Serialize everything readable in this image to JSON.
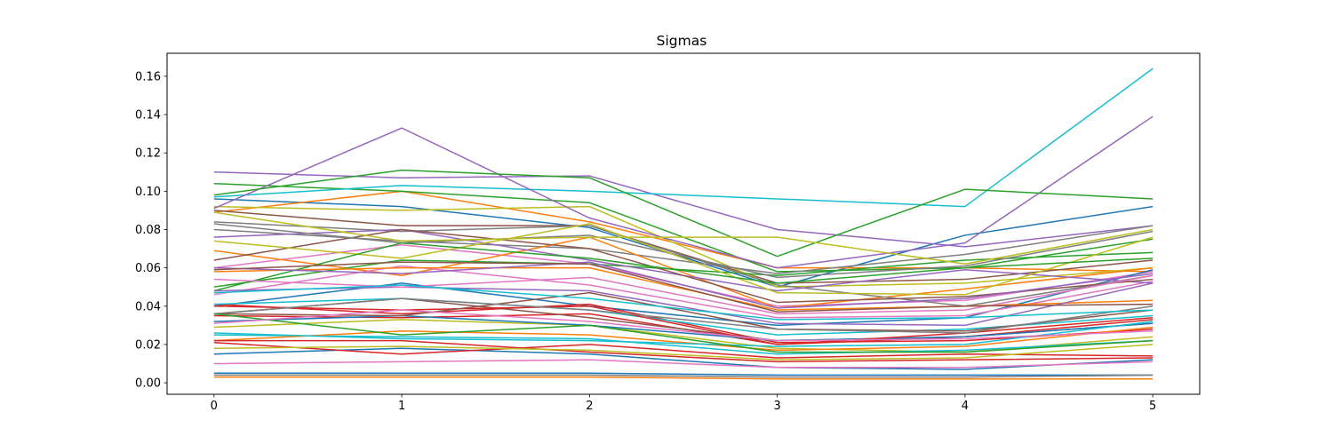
{
  "chart_data": {
    "type": "line",
    "title": "Sigmas",
    "xlabel": "",
    "ylabel": "",
    "x": [
      0,
      1,
      2,
      3,
      4,
      5
    ],
    "xlim": [
      -0.25,
      5.25
    ],
    "ylim": [
      -0.006,
      0.172
    ],
    "x_ticks": [
      "0",
      "1",
      "2",
      "3",
      "4",
      "5"
    ],
    "y_ticks": [
      "0.00",
      "0.02",
      "0.04",
      "0.06",
      "0.08",
      "0.10",
      "0.12",
      "0.14",
      "0.16"
    ],
    "y_tick_values": [
      0.0,
      0.02,
      0.04,
      0.06,
      0.08,
      0.1,
      0.12,
      0.14,
      0.16
    ],
    "grid": false,
    "legend": "none",
    "series": [
      {
        "color": "#1f77b4",
        "values": [
          0.096,
          0.092,
          0.081,
          0.05,
          0.077,
          0.092
        ]
      },
      {
        "color": "#ff7f0e",
        "values": [
          0.089,
          0.1,
          0.084,
          0.06,
          0.06,
          0.058
        ]
      },
      {
        "color": "#2ca02c",
        "values": [
          0.104,
          0.1,
          0.094,
          0.058,
          0.06,
          0.075
        ]
      },
      {
        "color": "#d62728",
        "values": [
          0.035,
          0.034,
          0.036,
          0.02,
          0.024,
          0.033
        ]
      },
      {
        "color": "#9467bd",
        "values": [
          0.11,
          0.107,
          0.108,
          0.08,
          0.071,
          0.082
        ]
      },
      {
        "color": "#8c564b",
        "values": [
          0.09,
          0.082,
          0.082,
          0.052,
          0.054,
          0.064
        ]
      },
      {
        "color": "#e377c2",
        "values": [
          0.06,
          0.072,
          0.062,
          0.04,
          0.043,
          0.058
        ]
      },
      {
        "color": "#7f7f7f",
        "values": [
          0.08,
          0.074,
          0.07,
          0.057,
          0.067,
          0.082
        ]
      },
      {
        "color": "#bcbd22",
        "values": [
          0.092,
          0.09,
          0.092,
          0.05,
          0.052,
          0.06
        ]
      },
      {
        "color": "#17becf",
        "values": [
          0.097,
          0.103,
          0.1,
          0.096,
          0.092,
          0.164
        ]
      },
      {
        "color": "#1f77b4",
        "values": [
          0.04,
          0.052,
          0.04,
          0.03,
          0.034,
          0.059
        ]
      },
      {
        "color": "#ff7f0e",
        "values": [
          0.069,
          0.056,
          0.076,
          0.039,
          0.049,
          0.06
        ]
      },
      {
        "color": "#2ca02c",
        "values": [
          0.05,
          0.064,
          0.062,
          0.056,
          0.064,
          0.068
        ]
      },
      {
        "color": "#d62728",
        "values": [
          0.041,
          0.036,
          0.041,
          0.021,
          0.022,
          0.028
        ]
      },
      {
        "color": "#9467bd",
        "values": [
          0.091,
          0.133,
          0.086,
          0.06,
          0.073,
          0.139
        ]
      },
      {
        "color": "#8c564b",
        "values": [
          0.036,
          0.044,
          0.034,
          0.022,
          0.024,
          0.031
        ]
      },
      {
        "color": "#e377c2",
        "values": [
          0.046,
          0.061,
          0.051,
          0.034,
          0.035,
          0.053
        ]
      },
      {
        "color": "#7f7f7f",
        "values": [
          0.084,
          0.079,
          0.082,
          0.051,
          0.04,
          0.056
        ]
      },
      {
        "color": "#bcbd22",
        "values": [
          0.029,
          0.033,
          0.03,
          0.018,
          0.016,
          0.024
        ]
      },
      {
        "color": "#17becf",
        "values": [
          0.025,
          0.024,
          0.023,
          0.015,
          0.017,
          0.022
        ]
      },
      {
        "color": "#1f77b4",
        "values": [
          0.015,
          0.018,
          0.015,
          0.008,
          0.007,
          0.012
        ]
      },
      {
        "color": "#ff7f0e",
        "values": [
          0.022,
          0.027,
          0.025,
          0.017,
          0.019,
          0.029
        ]
      },
      {
        "color": "#2ca02c",
        "values": [
          0.098,
          0.111,
          0.107,
          0.066,
          0.101,
          0.096
        ]
      },
      {
        "color": "#d62728",
        "values": [
          0.021,
          0.015,
          0.02,
          0.013,
          0.015,
          0.014
        ]
      },
      {
        "color": "#9467bd",
        "values": [
          0.076,
          0.08,
          0.064,
          0.048,
          0.059,
          0.052
        ]
      },
      {
        "color": "#8c564b",
        "values": [
          0.064,
          0.08,
          0.07,
          0.042,
          0.045,
          0.054
        ]
      },
      {
        "color": "#e377c2",
        "values": [
          0.01,
          0.011,
          0.012,
          0.008,
          0.008,
          0.011
        ]
      },
      {
        "color": "#7f7f7f",
        "values": [
          0.083,
          0.073,
          0.077,
          0.055,
          0.061,
          0.079
        ]
      },
      {
        "color": "#bcbd22",
        "values": [
          0.074,
          0.065,
          0.083,
          0.047,
          0.046,
          0.076
        ]
      },
      {
        "color": "#17becf",
        "values": [
          0.041,
          0.044,
          0.038,
          0.025,
          0.028,
          0.035
        ]
      },
      {
        "color": "#1f77b4",
        "values": [
          0.032,
          0.035,
          0.03,
          0.022,
          0.024,
          0.031
        ]
      },
      {
        "color": "#ff7f0e",
        "values": [
          0.058,
          0.06,
          0.06,
          0.038,
          0.04,
          0.043
        ]
      },
      {
        "color": "#2ca02c",
        "values": [
          0.048,
          0.073,
          0.065,
          0.052,
          0.06,
          0.065
        ]
      },
      {
        "color": "#d62728",
        "values": [
          0.04,
          0.038,
          0.04,
          0.02,
          0.026,
          0.034
        ]
      },
      {
        "color": "#9467bd",
        "values": [
          0.048,
          0.05,
          0.048,
          0.031,
          0.03,
          0.052
        ]
      },
      {
        "color": "#8c564b",
        "values": [
          0.036,
          0.035,
          0.047,
          0.028,
          0.027,
          0.038
        ]
      },
      {
        "color": "#e377c2",
        "values": [
          0.054,
          0.05,
          0.055,
          0.036,
          0.038,
          0.056
        ]
      },
      {
        "color": "#7f7f7f",
        "values": [
          0.036,
          0.044,
          0.038,
          0.028,
          0.026,
          0.04
        ]
      },
      {
        "color": "#bcbd22",
        "values": [
          0.089,
          0.074,
          0.076,
          0.076,
          0.062,
          0.08
        ]
      },
      {
        "color": "#17becf",
        "values": [
          0.026,
          0.023,
          0.022,
          0.019,
          0.02,
          0.032
        ]
      },
      {
        "color": "#1f77b4",
        "values": [
          0.005,
          0.005,
          0.005,
          0.004,
          0.004,
          0.004
        ]
      },
      {
        "color": "#ff7f0e",
        "values": [
          0.003,
          0.003,
          0.003,
          0.002,
          0.002,
          0.002
        ]
      },
      {
        "color": "#2ca02c",
        "values": [
          0.036,
          0.025,
          0.03,
          0.016,
          0.016,
          0.022
        ]
      },
      {
        "color": "#d62728",
        "values": [
          0.022,
          0.022,
          0.016,
          0.011,
          0.012,
          0.013
        ]
      },
      {
        "color": "#9467bd",
        "values": [
          0.06,
          0.057,
          0.063,
          0.039,
          0.044,
          0.057
        ]
      },
      {
        "color": "#8c564b",
        "values": [
          0.059,
          0.063,
          0.062,
          0.037,
          0.04,
          0.041
        ]
      },
      {
        "color": "#e377c2",
        "values": [
          0.031,
          0.038,
          0.032,
          0.022,
          0.023,
          0.027
        ]
      },
      {
        "color": "#7f7f7f",
        "values": [
          0.004,
          0.004,
          0.004,
          0.003,
          0.003,
          0.004
        ]
      },
      {
        "color": "#bcbd22",
        "values": [
          0.018,
          0.019,
          0.017,
          0.012,
          0.013,
          0.02
        ]
      },
      {
        "color": "#17becf",
        "values": [
          0.047,
          0.051,
          0.044,
          0.033,
          0.034,
          0.038
        ]
      }
    ]
  }
}
